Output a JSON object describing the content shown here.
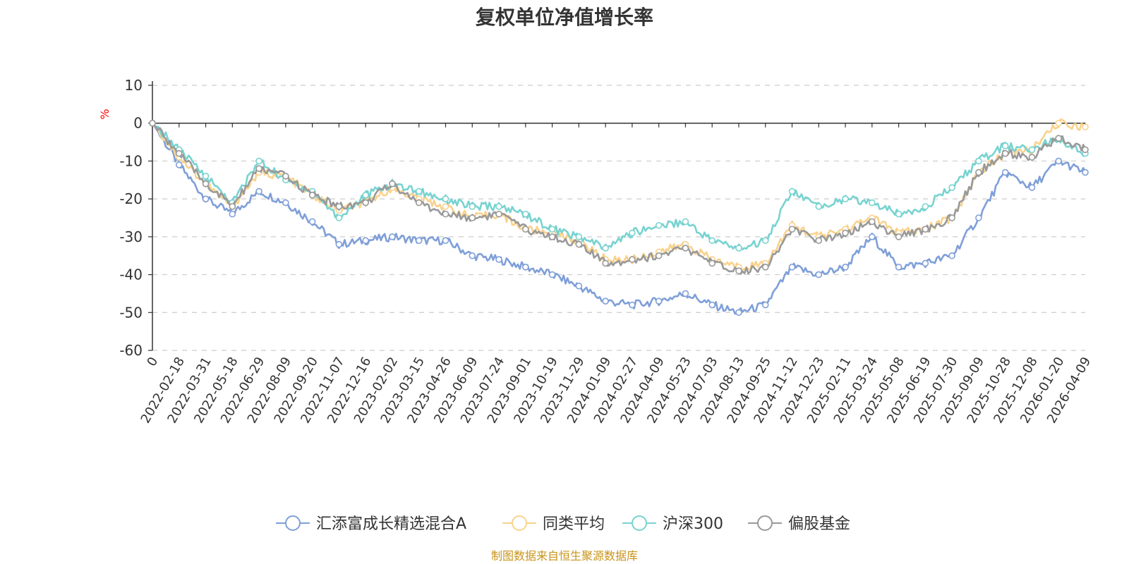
{
  "chart_data": {
    "type": "line",
    "title": "复权单位净值增长率",
    "ylabel": "%",
    "ylim": [
      -60,
      10
    ],
    "yticks": [
      10,
      0,
      -10,
      -20,
      -30,
      -40,
      -50,
      -60
    ],
    "x": [
      "0",
      "2022-02-18",
      "2022-03-31",
      "2022-05-18",
      "2022-06-29",
      "2022-08-09",
      "2022-09-20",
      "2022-11-07",
      "2022-12-16",
      "2023-02-02",
      "2023-03-15",
      "2023-04-26",
      "2023-06-09",
      "2023-07-24",
      "2023-09-01",
      "2023-10-19",
      "2023-11-29",
      "2024-01-09",
      "2024-02-27",
      "2024-04-09",
      "2024-05-23",
      "2024-07-03",
      "2024-08-13",
      "2024-09-25",
      "2024-11-12",
      "2024-12-23",
      "2025-02-11",
      "2025-03-24",
      "2025-05-08",
      "2025-06-19",
      "2025-07-30",
      "2025-09-09",
      "2025-10-28",
      "2025-12-08",
      "2026-01-20",
      "2026-04-09"
    ],
    "grid": true,
    "legend_position": "bottom-center",
    "series": [
      {
        "name": "汇添富成长精选混合A",
        "color": "#7f9fd8",
        "values": [
          0,
          -11,
          -20,
          -24,
          -18,
          -21,
          -26,
          -32,
          -31,
          -30,
          -31,
          -31,
          -35,
          -36,
          -38,
          -40,
          -43,
          -47,
          -48,
          -47,
          -45,
          -48,
          -50,
          -48,
          -38,
          -40,
          -38,
          -30,
          -38,
          -37,
          -35,
          -25,
          -13,
          -17,
          -10,
          -13
        ]
      },
      {
        "name": "同类平均",
        "color": "#f9d28d",
        "values": [
          0,
          -9,
          -16,
          -22,
          -13,
          -14,
          -19,
          -23,
          -21,
          -17,
          -20,
          -22,
          -25,
          -24,
          -28,
          -29,
          -31,
          -36,
          -36,
          -34,
          -32,
          -36,
          -38,
          -37,
          -27,
          -30,
          -28,
          -25,
          -29,
          -28,
          -25,
          -13,
          -8,
          -7,
          0,
          -1
        ]
      },
      {
        "name": "沪深300",
        "color": "#78d3d0",
        "values": [
          0,
          -7,
          -14,
          -21,
          -10,
          -15,
          -18,
          -25,
          -19,
          -16,
          -18,
          -20,
          -22,
          -22,
          -24,
          -28,
          -30,
          -33,
          -29,
          -27,
          -26,
          -31,
          -33,
          -31,
          -18,
          -22,
          -20,
          -21,
          -24,
          -22,
          -17,
          -10,
          -6,
          -7,
          -4,
          -8
        ]
      },
      {
        "name": "偏股基金",
        "color": "#999999",
        "values": [
          0,
          -8,
          -16,
          -22,
          -12,
          -14,
          -19,
          -22,
          -21,
          -16,
          -21,
          -24,
          -25,
          -24,
          -28,
          -30,
          -32,
          -37,
          -36,
          -35,
          -33,
          -37,
          -39,
          -38,
          -28,
          -31,
          -29,
          -26,
          -30,
          -28,
          -25,
          -13,
          -8,
          -9,
          -4,
          -7
        ]
      }
    ]
  },
  "source_text": "制图数据来自恒生聚源数据库"
}
